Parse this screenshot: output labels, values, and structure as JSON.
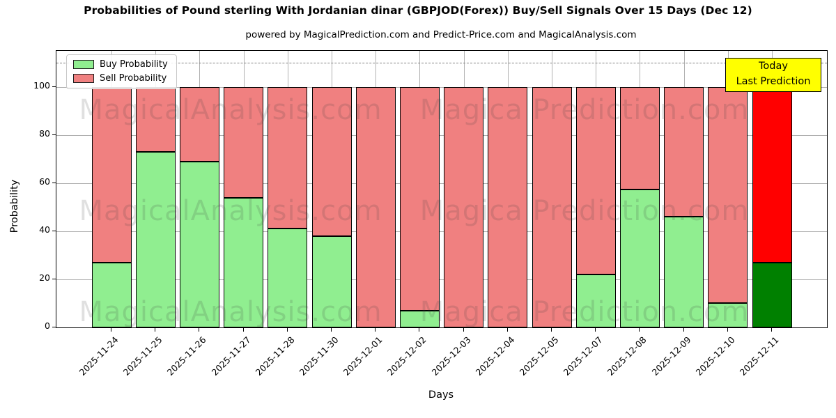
{
  "header": {
    "title": "Probabilities of Pound sterling With Jordanian dinar (GBPJOD(Forex)) Buy/Sell Signals Over 15 Days (Dec 12)",
    "subtitle": "powered by MagicalPrediction.com and Predict-Price.com and MagicalAnalysis.com"
  },
  "legend": {
    "buy_label": "Buy Probability",
    "sell_label": "Sell Probability"
  },
  "annotation_box": {
    "line1": "Today",
    "line2": "Last Prediction"
  },
  "watermarks": {
    "left_text": "MagicalAnalysis.com",
    "right_text": "Magica Prediction.com"
  },
  "colors": {
    "buy": "#90ee90",
    "sell": "#f08080",
    "today_buy": "#008000",
    "today_sell": "#ff0000",
    "bar_edge": "#000000",
    "grid": "#b0b0b0",
    "dashed_line": "#7f7f7f",
    "today_box_bg": "#ffff00"
  },
  "chart_data": {
    "type": "bar",
    "stacked": true,
    "title": "Probabilities of Pound sterling With Jordanian dinar (GBPJOD(Forex)) Buy/Sell Signals Over 15 Days (Dec 12)",
    "xlabel": "Days",
    "ylabel": "Probability",
    "ylim": [
      0,
      115
    ],
    "yticks": [
      0,
      20,
      40,
      60,
      80,
      100
    ],
    "grid": true,
    "legend_position": "upper-left",
    "threshold_dashed_line_y": 110,
    "categories": [
      "2025-11-24",
      "2025-11-25",
      "2025-11-26",
      "2025-11-27",
      "2025-11-28",
      "2025-11-30",
      "2025-12-01",
      "2025-12-02",
      "2025-12-03",
      "2025-12-04",
      "2025-12-05",
      "2025-12-07",
      "2025-12-08",
      "2025-12-09",
      "2025-12-10",
      "2025-12-11"
    ],
    "series": [
      {
        "name": "Buy Probability",
        "color": "#90ee90",
        "values": [
          27,
          73,
          69,
          54,
          41,
          38,
          0,
          7,
          0,
          0,
          0,
          22,
          57.5,
          46,
          10,
          27
        ]
      },
      {
        "name": "Sell Probability",
        "color": "#f08080",
        "values": [
          73,
          27,
          31,
          46,
          59,
          62,
          100,
          93,
          100,
          100,
          100,
          78,
          42.5,
          54,
          90,
          73
        ]
      }
    ],
    "today_index": 15,
    "today_colors": {
      "buy": "#008000",
      "sell": "#ff0000"
    }
  }
}
